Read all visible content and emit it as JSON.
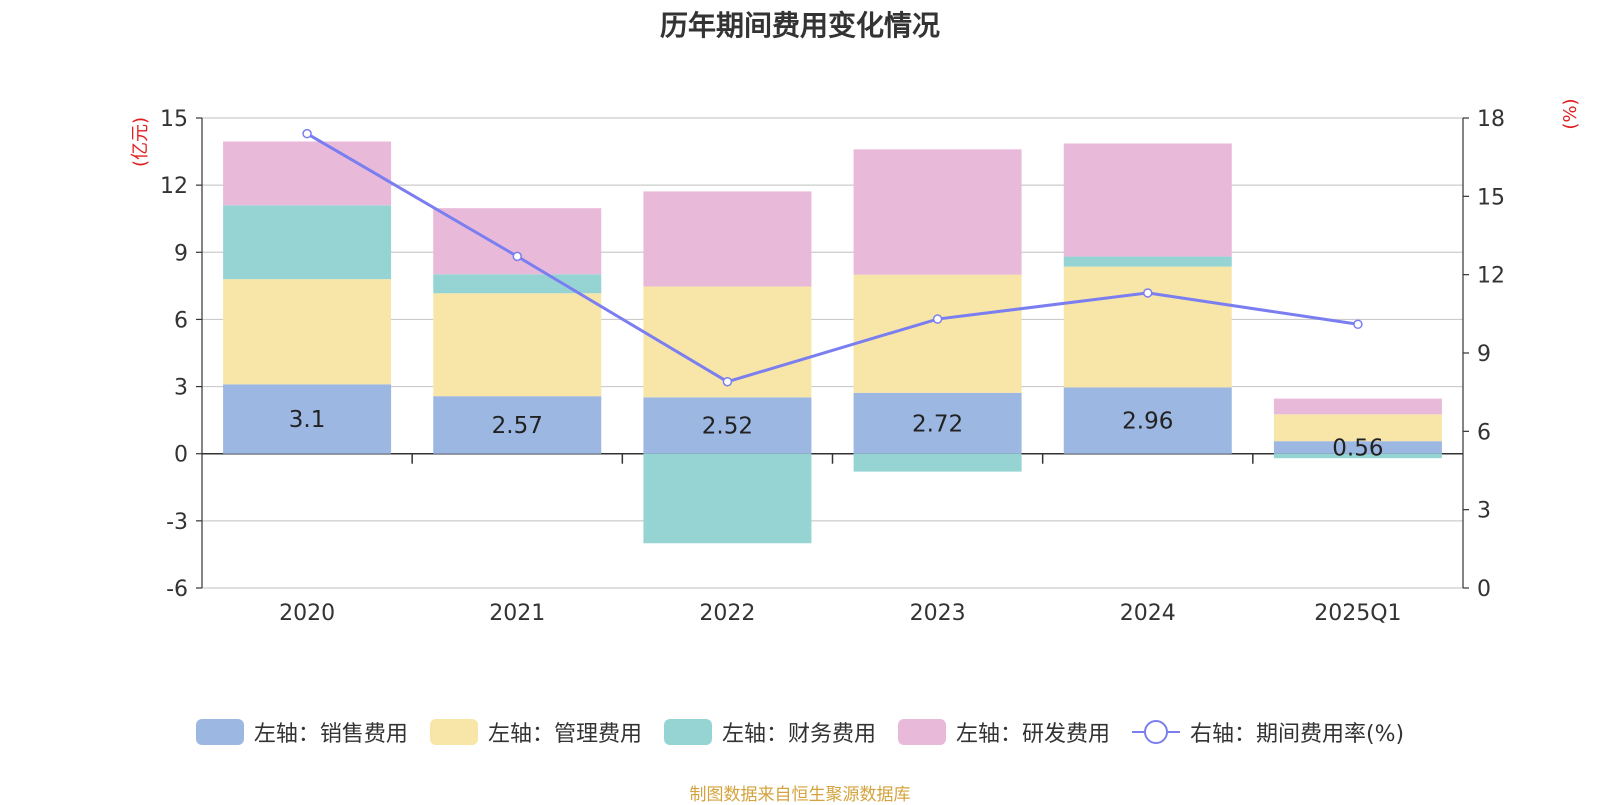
{
  "title": "历年期间费用变化情况",
  "source": "制图数据来自恒生聚源数据库",
  "chart_data": {
    "type": "bar",
    "stacked": true,
    "categories": [
      "2020",
      "2021",
      "2022",
      "2023",
      "2024",
      "2025Q1"
    ],
    "left_axis": {
      "unit_label": "(亿元)",
      "ylim": [
        -6,
        15
      ],
      "ticks": [
        15,
        12,
        9,
        6,
        3,
        0,
        -3,
        -6
      ]
    },
    "right_axis": {
      "unit_label": "(%)",
      "ylim": [
        0,
        18
      ],
      "ticks": [
        18,
        15,
        12,
        9,
        6,
        3,
        0
      ]
    },
    "grid": true,
    "legend_position": "bottom",
    "series": [
      {
        "name": "左轴：销售费用",
        "type": "bar",
        "axis": "left",
        "color": "#9cb7e2",
        "values": [
          3.1,
          2.57,
          2.52,
          2.72,
          2.96,
          0.56
        ],
        "data_labels": [
          "3.1",
          "2.57",
          "2.52",
          "2.72",
          "2.96",
          "0.56"
        ]
      },
      {
        "name": "左轴：管理费用",
        "type": "bar",
        "axis": "left",
        "color": "#f7e6a8",
        "values": [
          4.7,
          4.6,
          4.95,
          5.28,
          5.4,
          1.2
        ]
      },
      {
        "name": "左轴：财务费用",
        "type": "bar",
        "axis": "left",
        "color": "#96d4d4",
        "values": [
          3.3,
          0.85,
          -4.0,
          -0.8,
          0.45,
          -0.2
        ]
      },
      {
        "name": "左轴：研发费用",
        "type": "bar",
        "axis": "left",
        "color": "#e8b9d9",
        "values": [
          2.85,
          2.95,
          4.25,
          5.6,
          5.05,
          0.7
        ]
      },
      {
        "name": "右轴：期间费用率(%)",
        "type": "line",
        "axis": "right",
        "color": "#7b7ef0",
        "values": [
          17.4,
          12.7,
          7.9,
          10.3,
          11.3,
          10.1
        ]
      }
    ]
  }
}
